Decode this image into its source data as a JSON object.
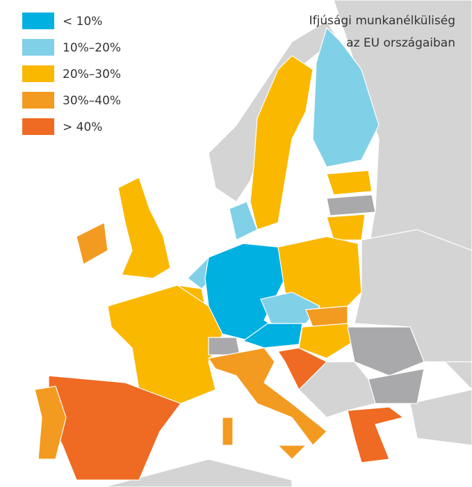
{
  "title_lines": [
    "Ifjúsági munkanélküliség",
    "az EU országaiban"
  ],
  "legend": [
    {
      "label": "< 10%",
      "color": "#00b0e0"
    },
    {
      "label": "10%–20%",
      "color": "#80d0e8"
    },
    {
      "label": "20%–30%",
      "color": "#fbb800"
    },
    {
      "label": "30%–40%",
      "color": "#f39a20"
    },
    {
      "label": "> 40%",
      "color": "#ef6a22"
    }
  ]
}
